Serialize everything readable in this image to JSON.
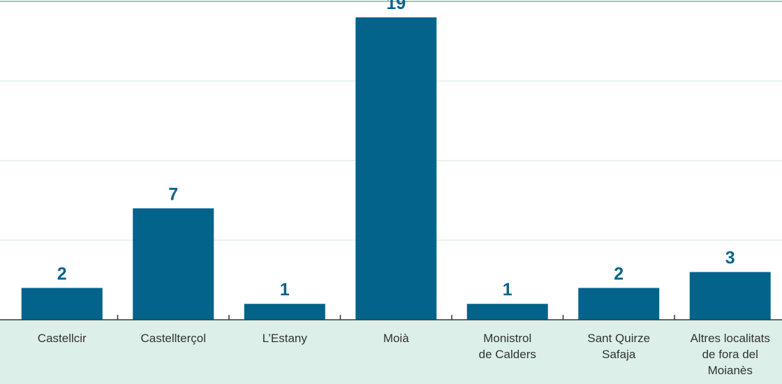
{
  "chart_data": {
    "type": "bar",
    "categories": [
      [
        "Castellcir"
      ],
      [
        "Castellterçol"
      ],
      [
        "L’Estany"
      ],
      [
        "Moià"
      ],
      [
        "Monistrol",
        "de Calders"
      ],
      [
        "Sant Quirze",
        "Safaja"
      ],
      [
        "Altres localitats",
        "de fora del",
        "Moianès"
      ]
    ],
    "values": [
      2,
      7,
      1,
      19,
      1,
      2,
      3
    ],
    "ylim": [
      0,
      20
    ],
    "grid": true,
    "colors": {
      "bar": "#03638a",
      "label": "#03638a",
      "band": "#dcefe8",
      "grid": "#cfe6df",
      "top_rule": "#8fd0bd"
    }
  }
}
